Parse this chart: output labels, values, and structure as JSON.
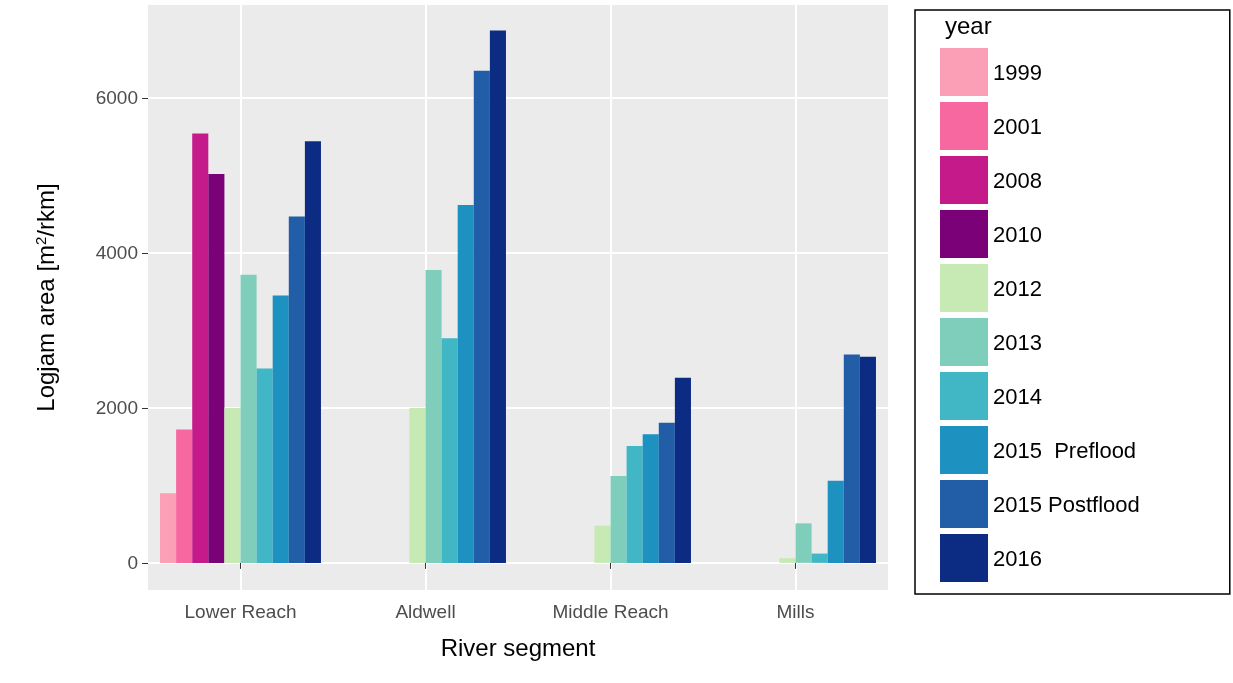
{
  "chart_data": {
    "type": "bar",
    "xlabel": "River segment",
    "ylabel": "Logjam area [m$^{2}$/rkm]",
    "legend_title": "year",
    "categories": [
      "Lower Reach",
      "Aldwell",
      "Middle Reach",
      "Mills"
    ],
    "series": [
      {
        "name": "1999",
        "color": "#fa9fb5",
        "values": [
          900,
          null,
          null,
          null
        ]
      },
      {
        "name": "2001",
        "color": "#f768a1",
        "values": [
          1720,
          null,
          null,
          null
        ]
      },
      {
        "name": "2008",
        "color": "#c51b8a",
        "values": [
          5540,
          null,
          null,
          null
        ]
      },
      {
        "name": "2010",
        "color": "#7a0177",
        "values": [
          5020,
          null,
          null,
          null
        ]
      },
      {
        "name": "2012",
        "color": "#c7e9b4",
        "values": [
          2000,
          2000,
          480,
          60
        ]
      },
      {
        "name": "2013",
        "color": "#7fcdbb",
        "values": [
          3720,
          3780,
          1120,
          510
        ]
      },
      {
        "name": "2014",
        "color": "#41b6c4",
        "values": [
          2510,
          2900,
          1510,
          120
        ]
      },
      {
        "name": "2015  Preflood",
        "color": "#1d91c0",
        "values": [
          3450,
          4620,
          1660,
          1060
        ]
      },
      {
        "name": "2015 Postflood",
        "color": "#225ea8",
        "values": [
          4470,
          6350,
          1810,
          2690
        ]
      },
      {
        "name": "2016",
        "color": "#0c2c84",
        "values": [
          5440,
          6870,
          2390,
          2660
        ]
      }
    ],
    "ylim": [
      -350,
      7200
    ],
    "yticks": [
      0,
      2000,
      4000,
      6000
    ],
    "grid": true,
    "legend": "right"
  }
}
